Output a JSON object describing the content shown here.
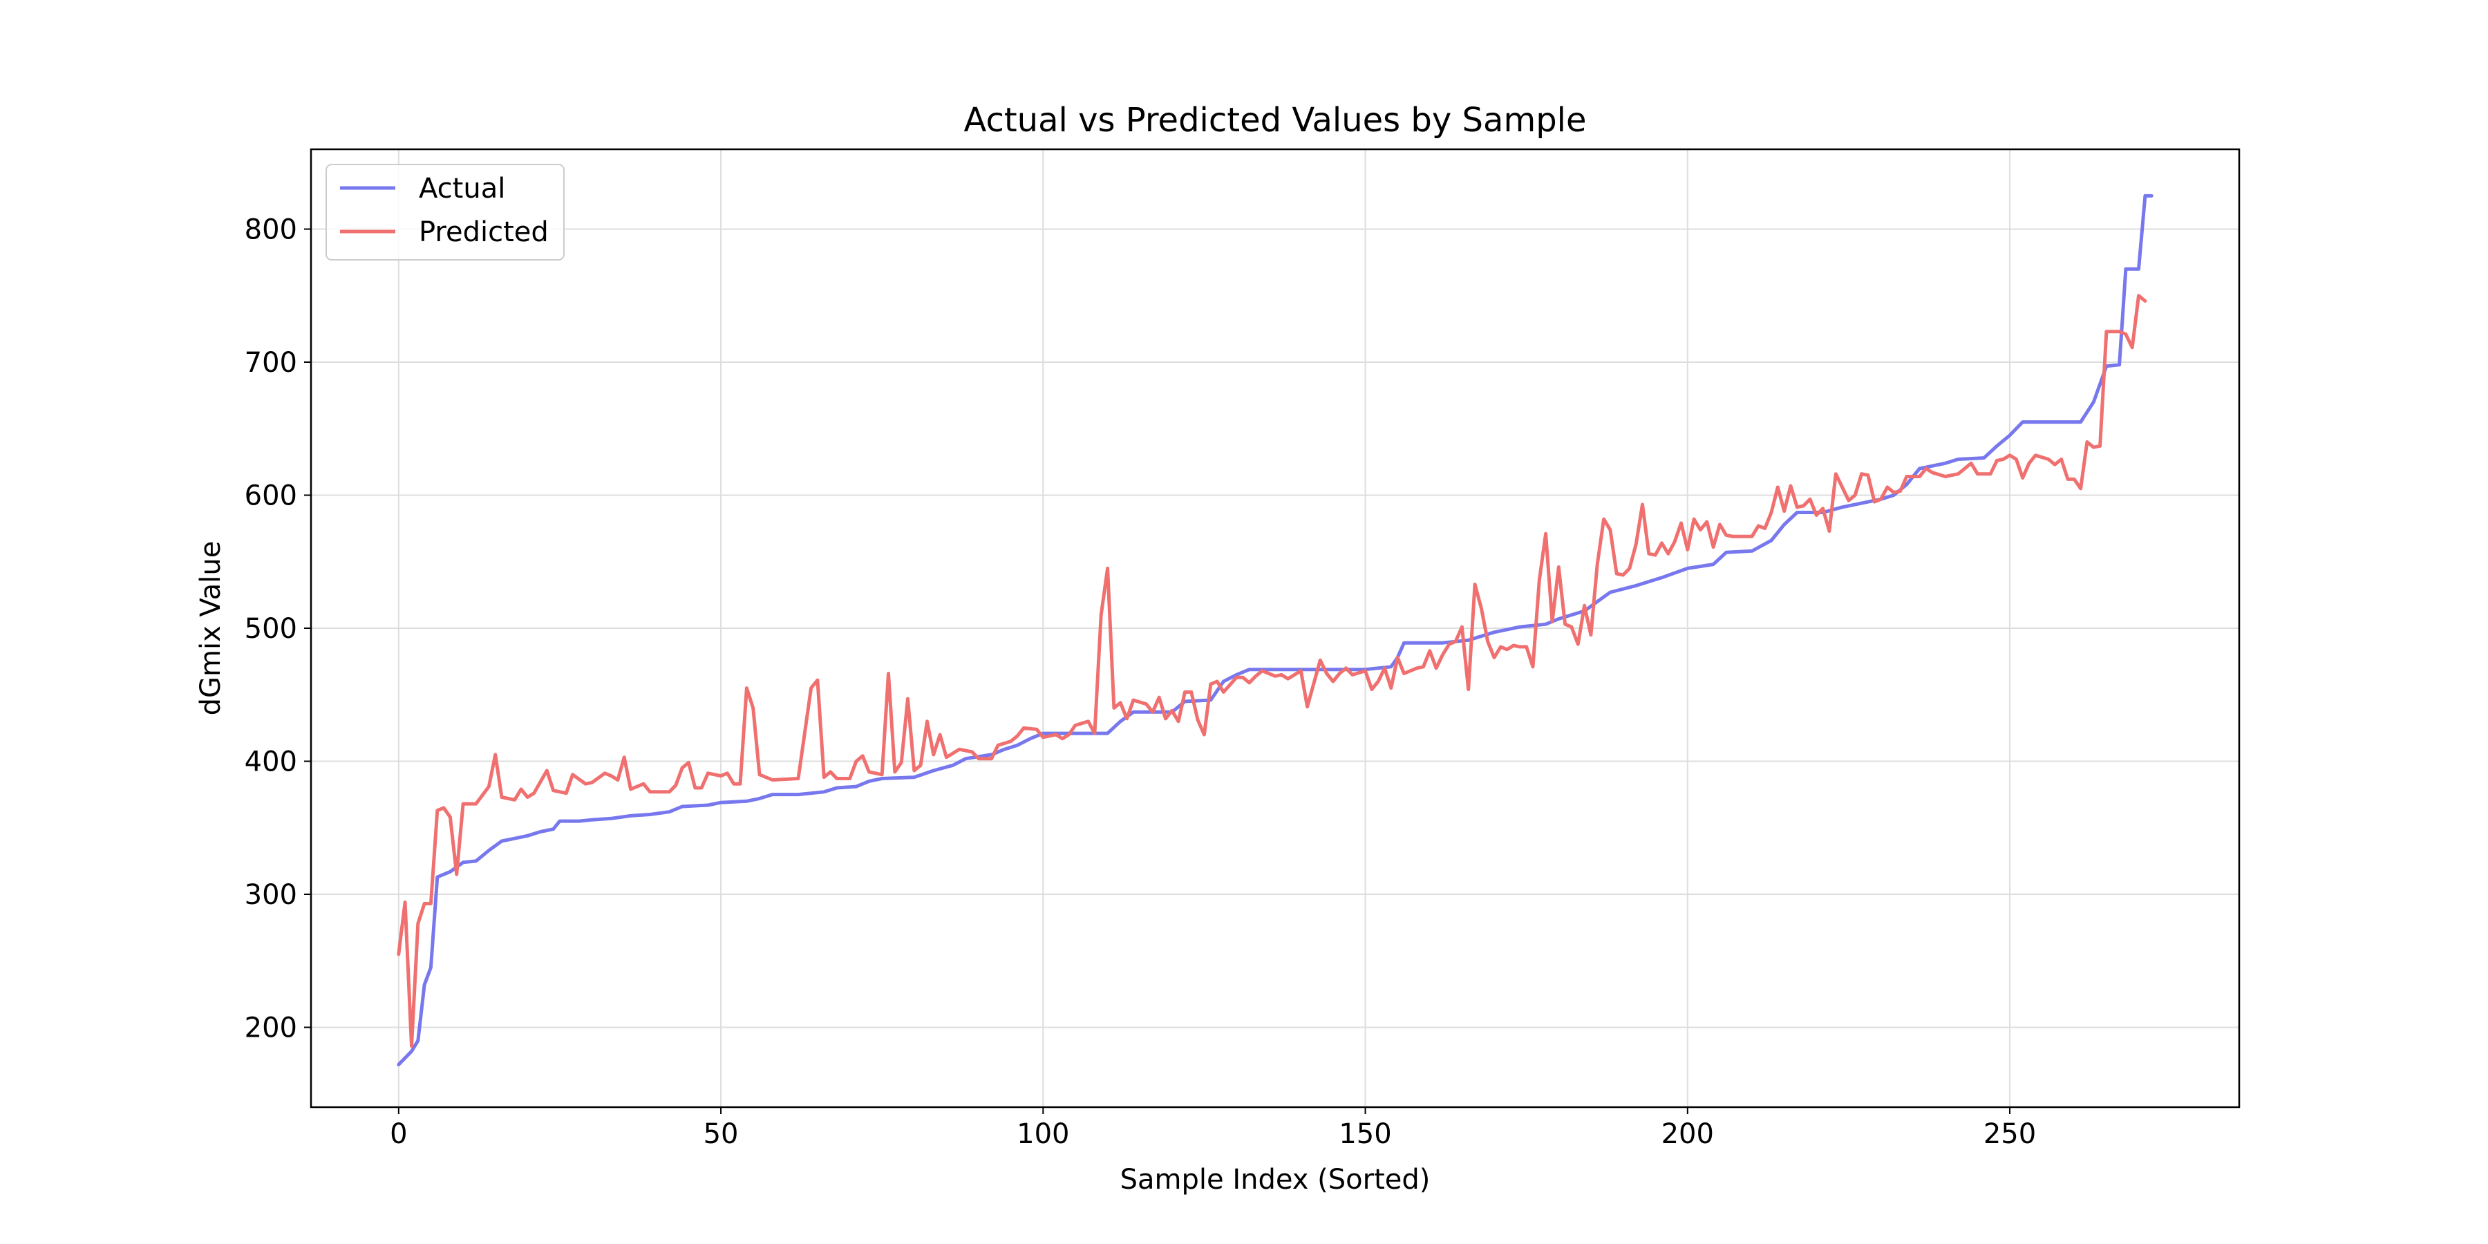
{
  "chart_data": {
    "type": "line",
    "title": "Actual vs Predicted Values by Sample",
    "xlabel": "Sample Index (Sorted)",
    "ylabel": "dGmix Value",
    "xlim": [
      -13.6,
      285.6
    ],
    "ylim": [
      140,
      860
    ],
    "xticks": [
      0,
      50,
      100,
      150,
      200,
      250
    ],
    "yticks": [
      200,
      300,
      400,
      500,
      600,
      700,
      800
    ],
    "grid": true,
    "legend_position": "upper-left",
    "series": [
      {
        "name": "Actual",
        "color": "#7777ee",
        "points": [
          [
            0,
            172
          ],
          [
            2,
            182
          ],
          [
            3,
            190
          ],
          [
            4,
            232
          ],
          [
            5,
            245
          ],
          [
            6,
            313
          ],
          [
            8,
            317
          ],
          [
            10,
            324
          ],
          [
            12,
            325
          ],
          [
            14,
            333
          ],
          [
            16,
            340
          ],
          [
            18,
            342
          ],
          [
            20,
            344
          ],
          [
            22,
            347
          ],
          [
            24,
            349
          ],
          [
            25,
            355
          ],
          [
            28,
            355
          ],
          [
            30,
            356
          ],
          [
            33,
            357
          ],
          [
            36,
            359
          ],
          [
            39,
            360
          ],
          [
            42,
            362
          ],
          [
            44,
            366
          ],
          [
            48,
            367
          ],
          [
            50,
            369
          ],
          [
            54,
            370
          ],
          [
            56,
            372
          ],
          [
            58,
            375
          ],
          [
            62,
            375
          ],
          [
            66,
            377
          ],
          [
            68,
            380
          ],
          [
            71,
            381
          ],
          [
            73,
            385
          ],
          [
            75,
            387
          ],
          [
            80,
            388
          ],
          [
            83,
            393
          ],
          [
            86,
            397
          ],
          [
            88,
            402
          ],
          [
            92,
            405
          ],
          [
            94,
            409
          ],
          [
            96,
            412
          ],
          [
            98,
            417
          ],
          [
            100,
            421
          ],
          [
            104,
            421
          ],
          [
            108,
            421
          ],
          [
            110,
            421
          ],
          [
            112,
            430
          ],
          [
            114,
            437
          ],
          [
            120,
            437
          ],
          [
            122,
            445
          ],
          [
            126,
            446
          ],
          [
            128,
            460
          ],
          [
            130,
            465
          ],
          [
            132,
            469
          ],
          [
            136,
            469
          ],
          [
            140,
            469
          ],
          [
            150,
            469
          ],
          [
            154,
            471
          ],
          [
            155,
            478
          ],
          [
            156,
            489
          ],
          [
            162,
            489
          ],
          [
            166,
            491
          ],
          [
            170,
            497
          ],
          [
            174,
            501
          ],
          [
            178,
            503
          ],
          [
            180,
            507
          ],
          [
            184,
            513
          ],
          [
            186,
            520
          ],
          [
            188,
            527
          ],
          [
            192,
            532
          ],
          [
            196,
            538
          ],
          [
            200,
            545
          ],
          [
            204,
            548
          ],
          [
            206,
            557
          ],
          [
            210,
            558
          ],
          [
            213,
            566
          ],
          [
            215,
            578
          ],
          [
            217,
            587
          ],
          [
            221,
            587
          ],
          [
            224,
            591
          ],
          [
            230,
            597
          ],
          [
            232,
            600
          ],
          [
            234,
            608
          ],
          [
            236,
            620
          ],
          [
            240,
            624
          ],
          [
            242,
            627
          ],
          [
            246,
            628
          ],
          [
            248,
            637
          ],
          [
            250,
            645
          ],
          [
            252,
            655
          ],
          [
            258,
            655
          ],
          [
            261,
            655
          ],
          [
            263,
            670
          ],
          [
            265,
            697
          ],
          [
            267,
            698
          ],
          [
            268,
            770
          ],
          [
            270,
            770
          ],
          [
            271,
            825
          ],
          [
            272,
            825
          ]
        ]
      },
      {
        "name": "Predicted",
        "color": "#f07070",
        "points": [
          [
            0,
            255
          ],
          [
            1,
            294
          ],
          [
            2,
            186
          ],
          [
            3,
            278
          ],
          [
            4,
            293
          ],
          [
            5,
            293
          ],
          [
            6,
            363
          ],
          [
            7,
            365
          ],
          [
            8,
            358
          ],
          [
            9,
            315
          ],
          [
            10,
            368
          ],
          [
            12,
            368
          ],
          [
            14,
            381
          ],
          [
            15,
            405
          ],
          [
            16,
            373
          ],
          [
            18,
            371
          ],
          [
            19,
            379
          ],
          [
            20,
            373
          ],
          [
            21,
            376
          ],
          [
            23,
            393
          ],
          [
            24,
            378
          ],
          [
            26,
            376
          ],
          [
            27,
            390
          ],
          [
            29,
            383
          ],
          [
            30,
            384
          ],
          [
            32,
            391
          ],
          [
            33,
            389
          ],
          [
            34,
            386
          ],
          [
            35,
            403
          ],
          [
            36,
            379
          ],
          [
            38,
            383
          ],
          [
            39,
            377
          ],
          [
            42,
            377
          ],
          [
            43,
            382
          ],
          [
            44,
            395
          ],
          [
            45,
            399
          ],
          [
            46,
            380
          ],
          [
            47,
            380
          ],
          [
            48,
            391
          ],
          [
            50,
            389
          ],
          [
            51,
            391
          ],
          [
            52,
            383
          ],
          [
            53,
            383
          ],
          [
            54,
            455
          ],
          [
            55,
            440
          ],
          [
            56,
            390
          ],
          [
            58,
            386
          ],
          [
            62,
            387
          ],
          [
            64,
            455
          ],
          [
            65,
            461
          ],
          [
            66,
            388
          ],
          [
            67,
            392
          ],
          [
            68,
            387
          ],
          [
            70,
            387
          ],
          [
            71,
            400
          ],
          [
            72,
            404
          ],
          [
            73,
            392
          ],
          [
            75,
            390
          ],
          [
            76,
            466
          ],
          [
            77,
            392
          ],
          [
            78,
            399
          ],
          [
            79,
            447
          ],
          [
            80,
            393
          ],
          [
            81,
            397
          ],
          [
            82,
            430
          ],
          [
            83,
            405
          ],
          [
            84,
            420
          ],
          [
            85,
            403
          ],
          [
            87,
            409
          ],
          [
            89,
            407
          ],
          [
            90,
            402
          ],
          [
            92,
            402
          ],
          [
            93,
            412
          ],
          [
            95,
            415
          ],
          [
            96,
            419
          ],
          [
            97,
            425
          ],
          [
            99,
            424
          ],
          [
            100,
            418
          ],
          [
            102,
            420
          ],
          [
            103,
            417
          ],
          [
            104,
            420
          ],
          [
            105,
            427
          ],
          [
            107,
            430
          ],
          [
            108,
            421
          ],
          [
            109,
            510
          ],
          [
            110,
            545
          ],
          [
            111,
            440
          ],
          [
            112,
            444
          ],
          [
            113,
            432
          ],
          [
            114,
            446
          ],
          [
            116,
            443
          ],
          [
            117,
            437
          ],
          [
            118,
            448
          ],
          [
            119,
            432
          ],
          [
            120,
            438
          ],
          [
            121,
            430
          ],
          [
            122,
            452
          ],
          [
            123,
            452
          ],
          [
            124,
            431
          ],
          [
            125,
            420
          ],
          [
            126,
            458
          ],
          [
            127,
            460
          ],
          [
            128,
            452
          ],
          [
            130,
            463
          ],
          [
            131,
            463
          ],
          [
            132,
            459
          ],
          [
            133,
            464
          ],
          [
            134,
            468
          ],
          [
            136,
            464
          ],
          [
            137,
            465
          ],
          [
            138,
            462
          ],
          [
            140,
            468
          ],
          [
            141,
            441
          ],
          [
            143,
            476
          ],
          [
            144,
            466
          ],
          [
            145,
            460
          ],
          [
            146,
            466
          ],
          [
            147,
            470
          ],
          [
            148,
            465
          ],
          [
            150,
            468
          ],
          [
            151,
            454
          ],
          [
            152,
            460
          ],
          [
            153,
            470
          ],
          [
            154,
            455
          ],
          [
            155,
            478
          ],
          [
            156,
            466
          ],
          [
            158,
            470
          ],
          [
            159,
            471
          ],
          [
            160,
            483
          ],
          [
            161,
            470
          ],
          [
            162,
            480
          ],
          [
            163,
            488
          ],
          [
            164,
            490
          ],
          [
            165,
            501
          ],
          [
            166,
            454
          ],
          [
            167,
            533
          ],
          [
            168,
            515
          ],
          [
            169,
            490
          ],
          [
            170,
            478
          ],
          [
            171,
            486
          ],
          [
            172,
            484
          ],
          [
            173,
            487
          ],
          [
            174,
            486
          ],
          [
            175,
            486
          ],
          [
            176,
            471
          ],
          [
            177,
            536
          ],
          [
            178,
            571
          ],
          [
            179,
            505
          ],
          [
            180,
            546
          ],
          [
            181,
            503
          ],
          [
            182,
            501
          ],
          [
            183,
            488
          ],
          [
            184,
            517
          ],
          [
            185,
            495
          ],
          [
            186,
            548
          ],
          [
            187,
            582
          ],
          [
            188,
            574
          ],
          [
            189,
            541
          ],
          [
            190,
            540
          ],
          [
            191,
            545
          ],
          [
            192,
            563
          ],
          [
            193,
            593
          ],
          [
            194,
            556
          ],
          [
            195,
            555
          ],
          [
            196,
            564
          ],
          [
            197,
            556
          ],
          [
            198,
            565
          ],
          [
            199,
            579
          ],
          [
            200,
            559
          ],
          [
            201,
            582
          ],
          [
            202,
            574
          ],
          [
            203,
            580
          ],
          [
            204,
            561
          ],
          [
            205,
            578
          ],
          [
            206,
            570
          ],
          [
            207,
            569
          ],
          [
            210,
            569
          ],
          [
            211,
            577
          ],
          [
            212,
            575
          ],
          [
            213,
            587
          ],
          [
            214,
            606
          ],
          [
            215,
            588
          ],
          [
            216,
            607
          ],
          [
            217,
            591
          ],
          [
            218,
            592
          ],
          [
            219,
            597
          ],
          [
            220,
            585
          ],
          [
            221,
            590
          ],
          [
            222,
            573
          ],
          [
            223,
            616
          ],
          [
            224,
            606
          ],
          [
            225,
            596
          ],
          [
            226,
            600
          ],
          [
            227,
            616
          ],
          [
            228,
            615
          ],
          [
            229,
            595
          ],
          [
            230,
            597
          ],
          [
            231,
            606
          ],
          [
            232,
            602
          ],
          [
            233,
            603
          ],
          [
            234,
            614
          ],
          [
            236,
            614
          ],
          [
            237,
            620
          ],
          [
            238,
            617
          ],
          [
            240,
            614
          ],
          [
            242,
            616
          ],
          [
            243,
            620
          ],
          [
            244,
            624
          ],
          [
            245,
            616
          ],
          [
            247,
            616
          ],
          [
            248,
            626
          ],
          [
            249,
            627
          ],
          [
            250,
            630
          ],
          [
            251,
            627
          ],
          [
            252,
            613
          ],
          [
            253,
            624
          ],
          [
            254,
            630
          ],
          [
            256,
            627
          ],
          [
            257,
            623
          ],
          [
            258,
            627
          ],
          [
            259,
            612
          ],
          [
            260,
            612
          ],
          [
            261,
            605
          ],
          [
            262,
            640
          ],
          [
            263,
            636
          ],
          [
            264,
            637
          ],
          [
            265,
            723
          ],
          [
            267,
            723
          ],
          [
            268,
            721
          ],
          [
            269,
            711
          ],
          [
            270,
            750
          ],
          [
            271,
            746
          ]
        ]
      }
    ]
  }
}
